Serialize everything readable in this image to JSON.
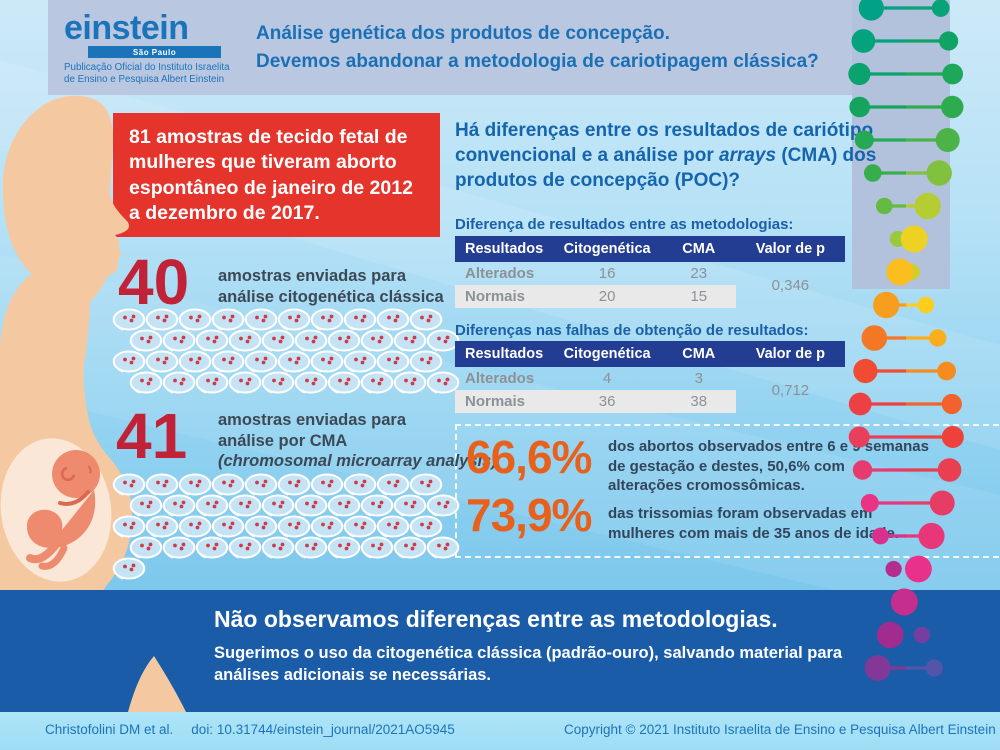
{
  "header": {
    "logo_word": "einstein",
    "logo_region": "São Paulo",
    "logo_sub1": "Publicação Oficial do Instituto Israelita",
    "logo_sub2": "de Ensino e Pesquisa Albert Einstein",
    "title_line1": "Análise genética dos produtos de concepção.",
    "title_line2": "Devemos abandonar a metodologia de cariotipagem clássica?"
  },
  "red_box": {
    "text": "81 amostras de tecido fetal de mulheres que tiveram aborto espontâneo de janeiro de 2012 a dezembro de 2017."
  },
  "samples": [
    {
      "value": "40",
      "line1": "amostras enviadas para",
      "line2": "análise citogenética clássica",
      "line3": "",
      "count": 40
    },
    {
      "value": "41",
      "line1": "amostras enviadas para",
      "line2": "análise por CMA",
      "line3": "(chromosomal microarray analysis)",
      "count": 41
    }
  ],
  "question": {
    "part1": "Há diferenças entre os resultados de cariótipo convencional e a análise por ",
    "italic": "arrays",
    "part2": " (CMA) dos produtos de concepção (POC)?"
  },
  "tables": [
    {
      "title": "Diferença de resultados entre as metodologias:",
      "headers": [
        "Resultados",
        "Citogenética",
        "CMA",
        "Valor de p"
      ],
      "rows": [
        {
          "label": "Alterados",
          "c1": "16",
          "c2": "23"
        },
        {
          "label": "Normais",
          "c1": "20",
          "c2": "15"
        }
      ],
      "p": "0,346"
    },
    {
      "title": "Diferenças nas falhas de obtenção de resultados:",
      "headers": [
        "Resultados",
        "Citogenética",
        "CMA",
        "Valor de p"
      ],
      "rows": [
        {
          "label": "Alterados",
          "c1": "4",
          "c2": "3"
        },
        {
          "label": "Normais",
          "c1": "36",
          "c2": "38"
        }
      ],
      "p": "0,712"
    }
  ],
  "stats": [
    {
      "value": "66,6%",
      "line1": "dos abortos observados entre 6 e 9 semanas",
      "line2": "de gestação e destes, 50,6% com",
      "line3": "alterações cromossômicas."
    },
    {
      "value": "73,9%",
      "line1": "das trissomias foram observadas em",
      "line2": "mulheres com mais de 35 anos de idade.",
      "line3": ""
    }
  ],
  "conclusion": {
    "headline": "Não observamos diferenças entre as metodologias.",
    "line1": "Sugerimos o uso da citogenética clássica (padrão-ouro), salvando material para",
    "line2": "análises adicionais se necessárias."
  },
  "footer": {
    "citation": "Christofolini DM et al.",
    "doi": "doi: 10.31744/einstein_journal/2021AO5945",
    "copyright": "Copyright © 2021 Instituto Israelita de Ensino e Pesquisa Albert Einstein"
  },
  "colors": {
    "accent_red": "#E5342B",
    "number_red": "#C22237",
    "orange": "#E8611C",
    "title_blue": "#1A70B5",
    "table_header_blue": "#233D93",
    "conclusion_bar_blue": "#1A5CA8",
    "header_band": "#BAC7E1",
    "skin": "#F4C9A1",
    "amnio": "#FBE7D7",
    "fetus": "#EE8B6E",
    "fetus_detail": "#D9694F",
    "dish_fill": "#C4E3F4",
    "dish_dot": "#CE3B49",
    "dna_palette": [
      [
        0,
        "#00A185"
      ],
      [
        80,
        "#12A45E"
      ],
      [
        155,
        "#3BAE49"
      ],
      [
        215,
        "#9BCA3B"
      ],
      [
        275,
        "#FFD21E"
      ],
      [
        340,
        "#F7941E"
      ],
      [
        405,
        "#EF4136"
      ],
      [
        475,
        "#E63E63"
      ],
      [
        545,
        "#E9318C"
      ],
      [
        615,
        "#9C2B90"
      ],
      [
        672,
        "#6A46A0"
      ],
      [
        722,
        "#3069B5"
      ],
      [
        770,
        "#41B2E6"
      ],
      [
        900,
        "#41B2E6"
      ]
    ]
  }
}
